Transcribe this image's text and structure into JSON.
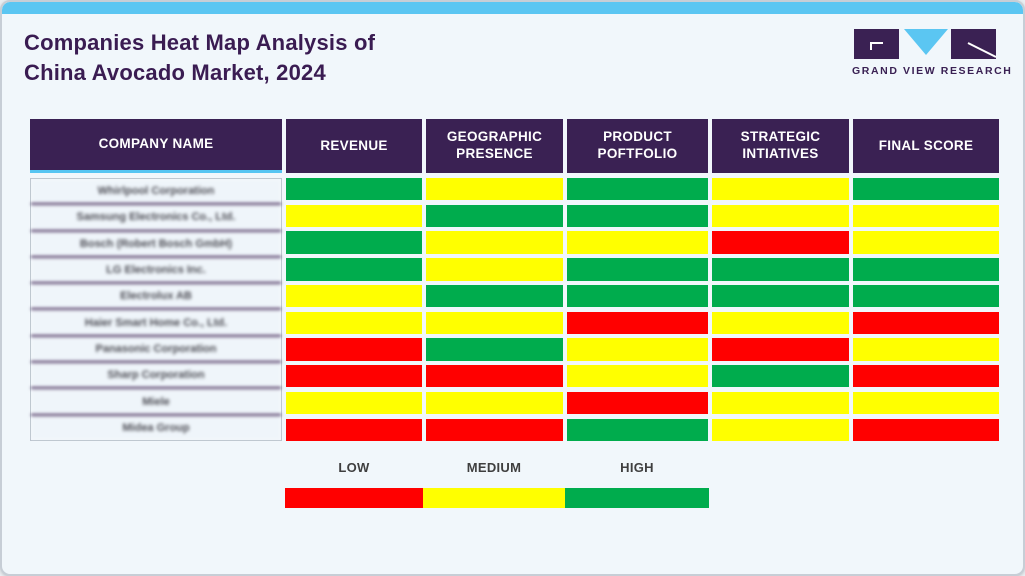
{
  "card": {
    "title_line1": "Companies Heat Map Analysis of",
    "title_line2": "China Avocado Market, 2024"
  },
  "logo": {
    "brand": "GRAND VIEW RESEARCH"
  },
  "table": {
    "columns": [
      "COMPANY NAME",
      "REVENUE",
      "GEOGRAPHIC PRESENCE",
      "PRODUCT POFTFOLIO",
      "STRATEGIC INTIATIVES",
      "FINAL SCORE"
    ],
    "companies": [
      "Whirlpool Corporation",
      "Samsung Electronics Co., Ltd.",
      "Bosch (Robert Bosch GmbH)",
      "LG Electronics Inc.",
      "Electrolux AB",
      "Haier Smart Home Co., Ltd.",
      "Panasonic Corporation",
      "Sharp Corporation",
      "Miele",
      "Midea Group"
    ],
    "scores": [
      [
        "high",
        "medium",
        "high",
        "medium",
        "high"
      ],
      [
        "medium",
        "high",
        "high",
        "medium",
        "medium"
      ],
      [
        "high",
        "medium",
        "medium",
        "low",
        "medium"
      ],
      [
        "high",
        "medium",
        "high",
        "high",
        "high"
      ],
      [
        "medium",
        "high",
        "high",
        "high",
        "high"
      ],
      [
        "medium",
        "medium",
        "low",
        "medium",
        "low"
      ],
      [
        "low",
        "high",
        "medium",
        "low",
        "medium"
      ],
      [
        "low",
        "low",
        "medium",
        "high",
        "low"
      ],
      [
        "medium",
        "medium",
        "low",
        "medium",
        "medium"
      ],
      [
        "low",
        "low",
        "high",
        "medium",
        "low"
      ]
    ]
  },
  "legend": {
    "items": [
      {
        "label": "LOW",
        "level": "low",
        "color": "#FF0000"
      },
      {
        "label": "MEDIUM",
        "level": "medium",
        "color": "#FFFF00"
      },
      {
        "label": "HIGH",
        "level": "high",
        "color": "#00AC4D"
      }
    ]
  },
  "colors": {
    "low": "#FF0000",
    "medium": "#FFFF00",
    "high": "#00AC4D",
    "header_bg": "#3A2153",
    "accent_blue": "#5BC6F2",
    "title_purple": "#3A1C52"
  },
  "chart_data": {
    "type": "heatmap",
    "title": "Companies Heat Map Analysis of China Avocado Market, 2024",
    "rows": [
      "Whirlpool Corporation",
      "Samsung Electronics Co., Ltd.",
      "Bosch (Robert Bosch GmbH)",
      "LG Electronics Inc.",
      "Electrolux AB",
      "Haier Smart Home Co., Ltd.",
      "Panasonic Corporation",
      "Sharp Corporation",
      "Miele",
      "Midea Group"
    ],
    "columns": [
      "REVENUE",
      "GEOGRAPHIC PRESENCE",
      "PRODUCT POFTFOLIO",
      "STRATEGIC INTIATIVES",
      "FINAL SCORE"
    ],
    "values": [
      [
        "HIGH",
        "MEDIUM",
        "HIGH",
        "MEDIUM",
        "HIGH"
      ],
      [
        "MEDIUM",
        "HIGH",
        "HIGH",
        "MEDIUM",
        "MEDIUM"
      ],
      [
        "HIGH",
        "MEDIUM",
        "MEDIUM",
        "LOW",
        "MEDIUM"
      ],
      [
        "HIGH",
        "MEDIUM",
        "HIGH",
        "HIGH",
        "HIGH"
      ],
      [
        "MEDIUM",
        "HIGH",
        "HIGH",
        "HIGH",
        "HIGH"
      ],
      [
        "MEDIUM",
        "MEDIUM",
        "LOW",
        "MEDIUM",
        "LOW"
      ],
      [
        "LOW",
        "HIGH",
        "MEDIUM",
        "LOW",
        "MEDIUM"
      ],
      [
        "LOW",
        "LOW",
        "MEDIUM",
        "HIGH",
        "LOW"
      ],
      [
        "MEDIUM",
        "MEDIUM",
        "LOW",
        "MEDIUM",
        "MEDIUM"
      ],
      [
        "LOW",
        "LOW",
        "HIGH",
        "MEDIUM",
        "LOW"
      ]
    ],
    "scale": {
      "LOW": "#FF0000",
      "MEDIUM": "#FFFF00",
      "HIGH": "#00AC4D"
    },
    "legend_position": "bottom"
  }
}
